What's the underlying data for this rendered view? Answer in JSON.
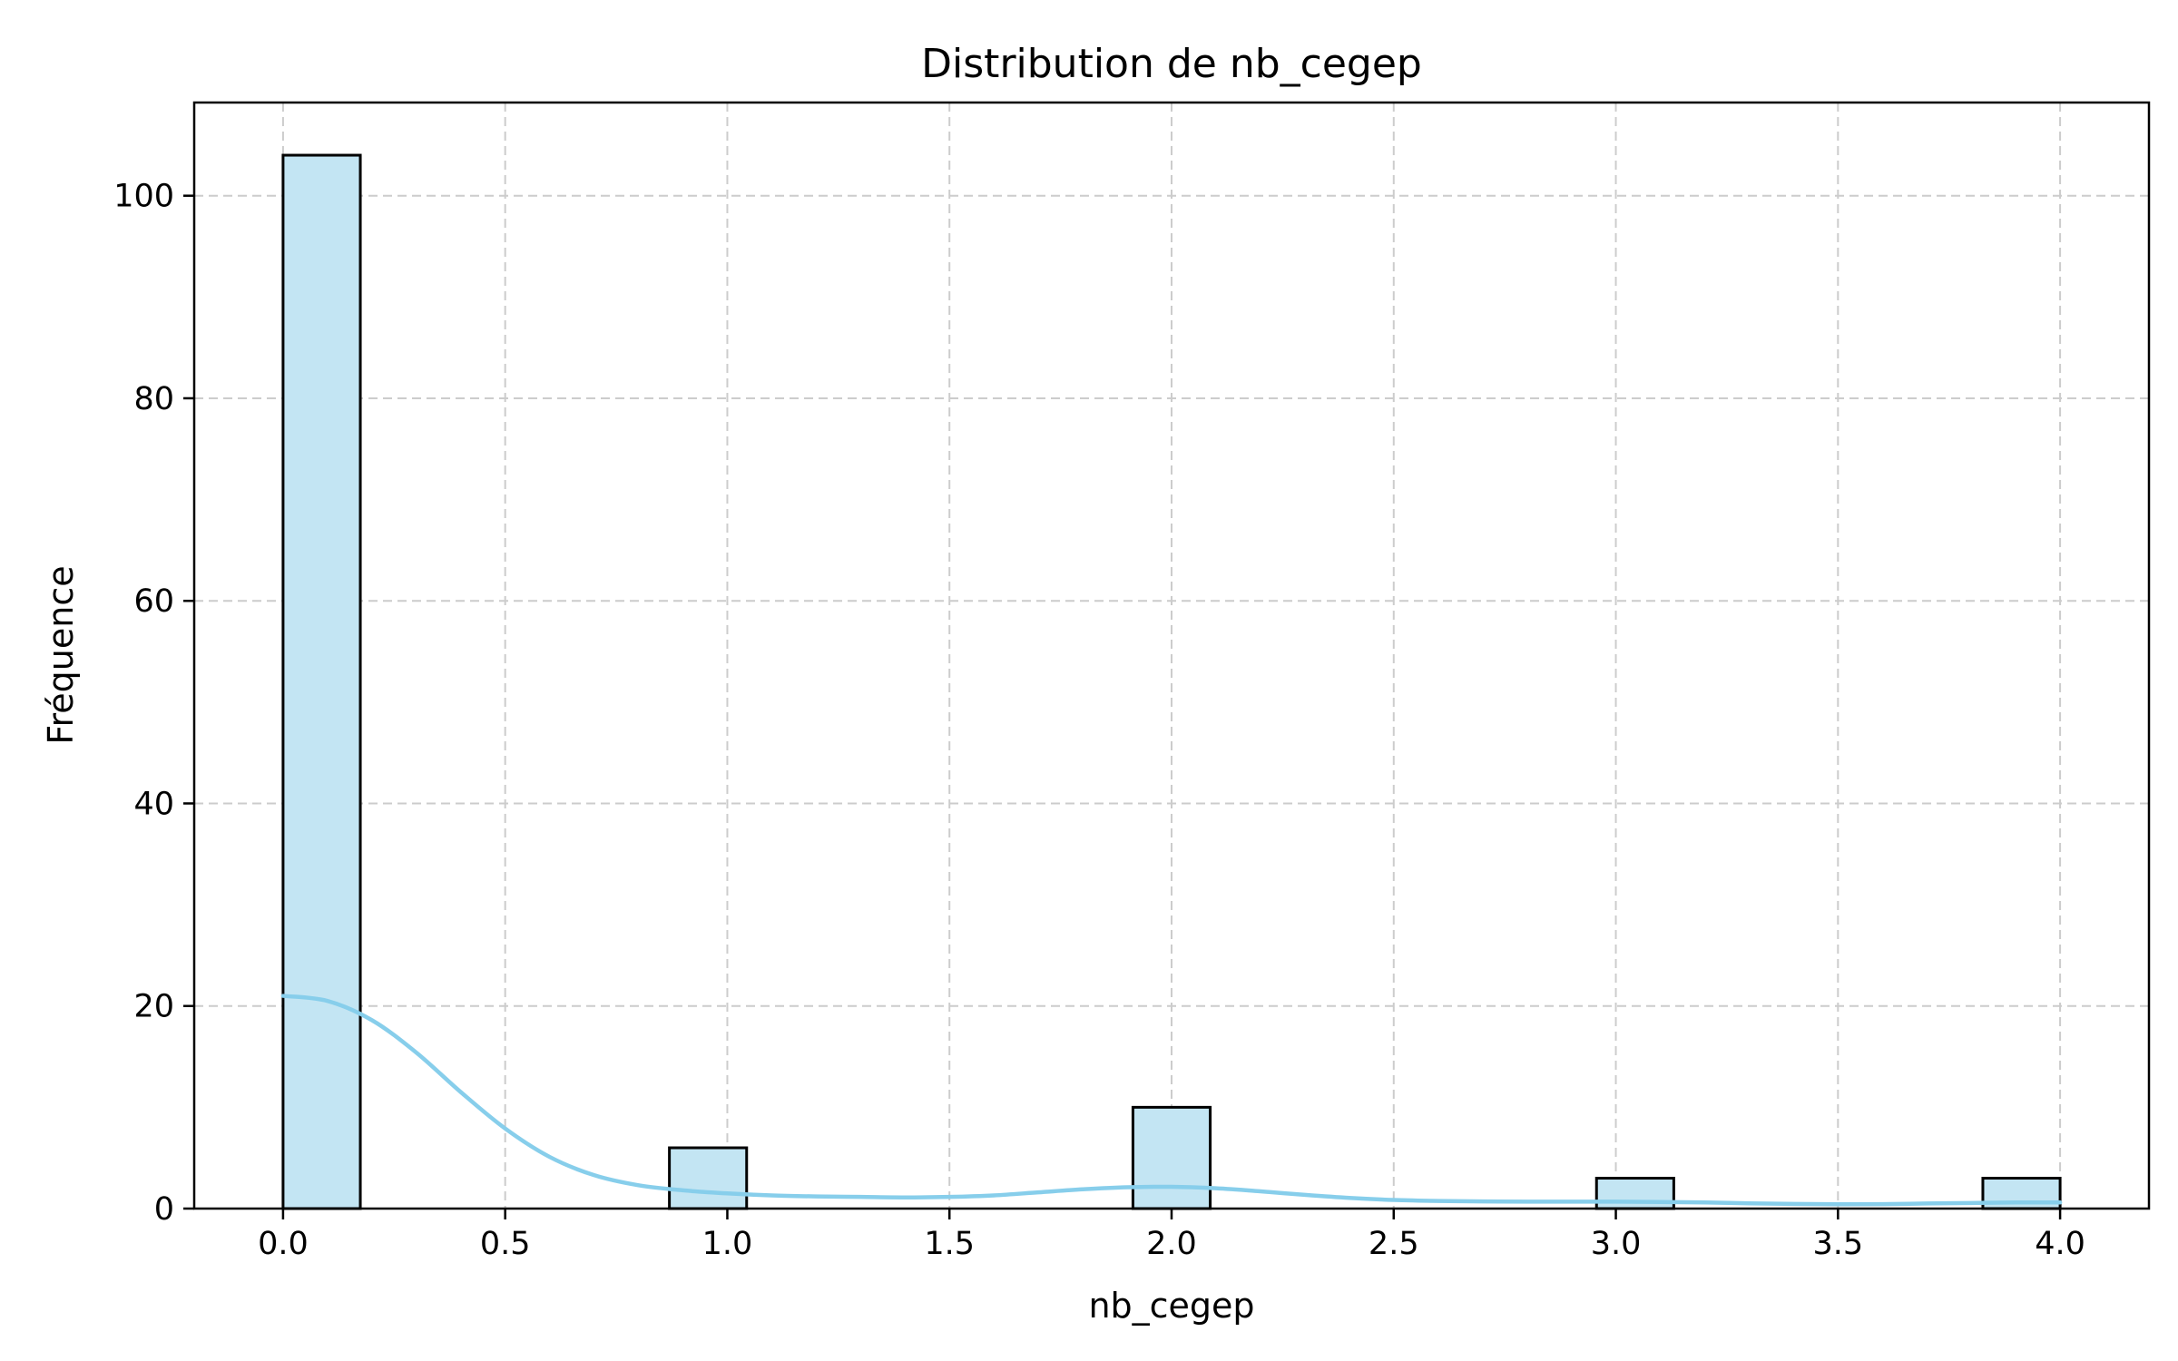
{
  "chart_data": {
    "type": "bar",
    "title": "Distribution de nb_cegep",
    "xlabel": "nb_cegep",
    "ylabel": "Fréquence",
    "xlim": [
      -0.2,
      4.2
    ],
    "ylim": [
      0,
      109.2
    ],
    "grid": true,
    "bin_width": 0.1739,
    "bars": [
      {
        "x_start": 0.0,
        "x_end": 0.1739,
        "count": 104
      },
      {
        "x_start": 0.8696,
        "x_end": 1.0435,
        "count": 6
      },
      {
        "x_start": 1.913,
        "x_end": 2.087,
        "count": 10
      },
      {
        "x_start": 2.9565,
        "x_end": 3.1304,
        "count": 3
      },
      {
        "x_start": 3.8261,
        "x_end": 4.0,
        "count": 3
      }
    ],
    "kde": {
      "x": [
        0.0,
        0.1,
        0.2,
        0.3,
        0.4,
        0.5,
        0.6,
        0.7,
        0.8,
        0.9,
        1.0,
        1.1,
        1.2,
        1.3,
        1.4,
        1.5,
        1.6,
        1.7,
        1.8,
        1.9,
        2.0,
        2.1,
        2.2,
        2.3,
        2.4,
        2.5,
        2.6,
        2.7,
        2.8,
        2.9,
        3.0,
        3.1,
        3.2,
        3.3,
        3.4,
        3.5,
        3.6,
        3.7,
        3.8,
        3.9,
        4.0
      ],
      "y": [
        21.0,
        20.5,
        18.6,
        15.4,
        11.5,
        7.9,
        5.1,
        3.3,
        2.3,
        1.8,
        1.5,
        1.3,
        1.2,
        1.15,
        1.1,
        1.15,
        1.3,
        1.6,
        1.9,
        2.1,
        2.15,
        2.0,
        1.7,
        1.35,
        1.05,
        0.85,
        0.75,
        0.7,
        0.68,
        0.68,
        0.68,
        0.65,
        0.6,
        0.52,
        0.46,
        0.43,
        0.44,
        0.5,
        0.55,
        0.6,
        0.6
      ]
    },
    "x_ticks": [
      0.0,
      0.5,
      1.0,
      1.5,
      2.0,
      2.5,
      3.0,
      3.5,
      4.0
    ],
    "x_tick_labels": [
      "0.0",
      "0.5",
      "1.0",
      "1.5",
      "2.0",
      "2.5",
      "3.0",
      "3.5",
      "4.0"
    ],
    "y_ticks": [
      0,
      20,
      40,
      60,
      80,
      100
    ],
    "y_tick_labels": [
      "0",
      "20",
      "40",
      "60",
      "80",
      "100"
    ],
    "colors": {
      "bar_fill": "#c3e5f3",
      "bar_edge": "#000000",
      "kde_line": "#87ceeb",
      "grid": "#cccccc"
    }
  }
}
